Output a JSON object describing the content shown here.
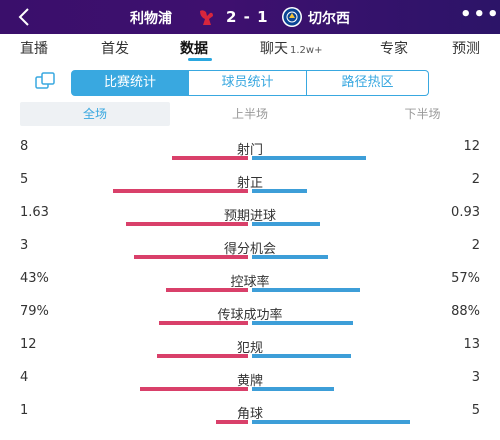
{
  "header": {
    "home_team": "利物浦",
    "away_team": "切尔西",
    "score": "2 - 1",
    "home_color": "#d7263d",
    "away_color": "#0a4595",
    "back_icon": "chevron-left-icon",
    "more_icon": "more-dots-icon"
  },
  "tabs": [
    {
      "label": "直播"
    },
    {
      "label": "首发"
    },
    {
      "label": "数据",
      "active": true
    },
    {
      "label": "聊天",
      "sub": "1.2w+"
    },
    {
      "label": "专家"
    },
    {
      "label": "预测"
    }
  ],
  "segments": [
    {
      "label": "比赛统计",
      "active": true
    },
    {
      "label": "球员统计"
    },
    {
      "label": "路径热区"
    }
  ],
  "periods": [
    {
      "label": "全场",
      "active": true
    },
    {
      "label": "上半场"
    },
    {
      "label": "下半场"
    }
  ],
  "colors": {
    "home_bar": "#d9406a",
    "away_bar": "#3d9ed8",
    "accent": "#39a8e0"
  },
  "stats": [
    {
      "name": "射门",
      "home": "8",
      "away": "12",
      "home_frac": 0.4,
      "away_frac": 0.6
    },
    {
      "name": "射正",
      "home": "5",
      "away": "2",
      "home_frac": 0.71,
      "away_frac": 0.29
    },
    {
      "name": "预期进球",
      "home": "1.63",
      "away": "0.93",
      "home_frac": 0.64,
      "away_frac": 0.36
    },
    {
      "name": "得分机会",
      "home": "3",
      "away": "2",
      "home_frac": 0.6,
      "away_frac": 0.4
    },
    {
      "name": "控球率",
      "home": "43%",
      "away": "57%",
      "home_frac": 0.43,
      "away_frac": 0.57
    },
    {
      "name": "传球成功率",
      "home": "79%",
      "away": "88%",
      "home_frac": 0.47,
      "away_frac": 0.53
    },
    {
      "name": "犯规",
      "home": "12",
      "away": "13",
      "home_frac": 0.48,
      "away_frac": 0.52
    },
    {
      "name": "黄牌",
      "home": "4",
      "away": "3",
      "home_frac": 0.57,
      "away_frac": 0.43
    },
    {
      "name": "角球",
      "home": "1",
      "away": "5",
      "home_frac": 0.17,
      "away_frac": 0.83
    }
  ]
}
